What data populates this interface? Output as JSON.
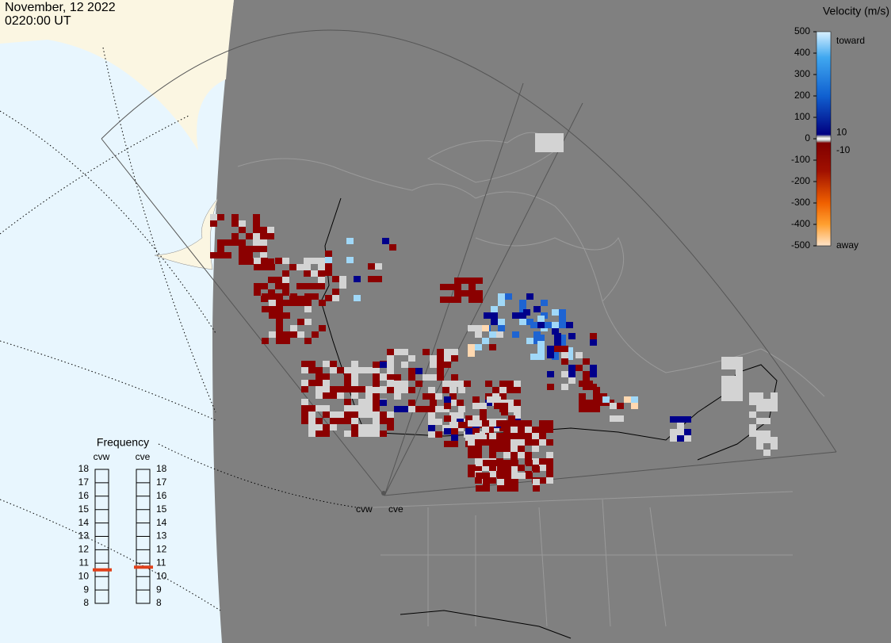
{
  "header": {
    "date": "November, 12 2022",
    "time": "0220:00 UT"
  },
  "colorbar": {
    "title": "Velocity (m/s)",
    "lim": [
      -500,
      500
    ],
    "ticks": [
      500,
      400,
      300,
      200,
      100,
      0,
      -100,
      -200,
      -300,
      -400,
      -500
    ],
    "inner_ticks": [
      10,
      -10
    ],
    "top_label": "toward",
    "bottom_label": "away"
  },
  "frequency": {
    "title": "Frequency",
    "lim": [
      8,
      18
    ],
    "ticks": [
      18,
      17,
      16,
      15,
      14,
      13,
      12,
      11,
      10,
      9,
      8
    ],
    "radars": [
      {
        "name": "cvw",
        "value": 10.5
      },
      {
        "name": "cve",
        "value": 10.7
      }
    ]
  },
  "radar_sites": [
    "cvw",
    "cve"
  ]
}
